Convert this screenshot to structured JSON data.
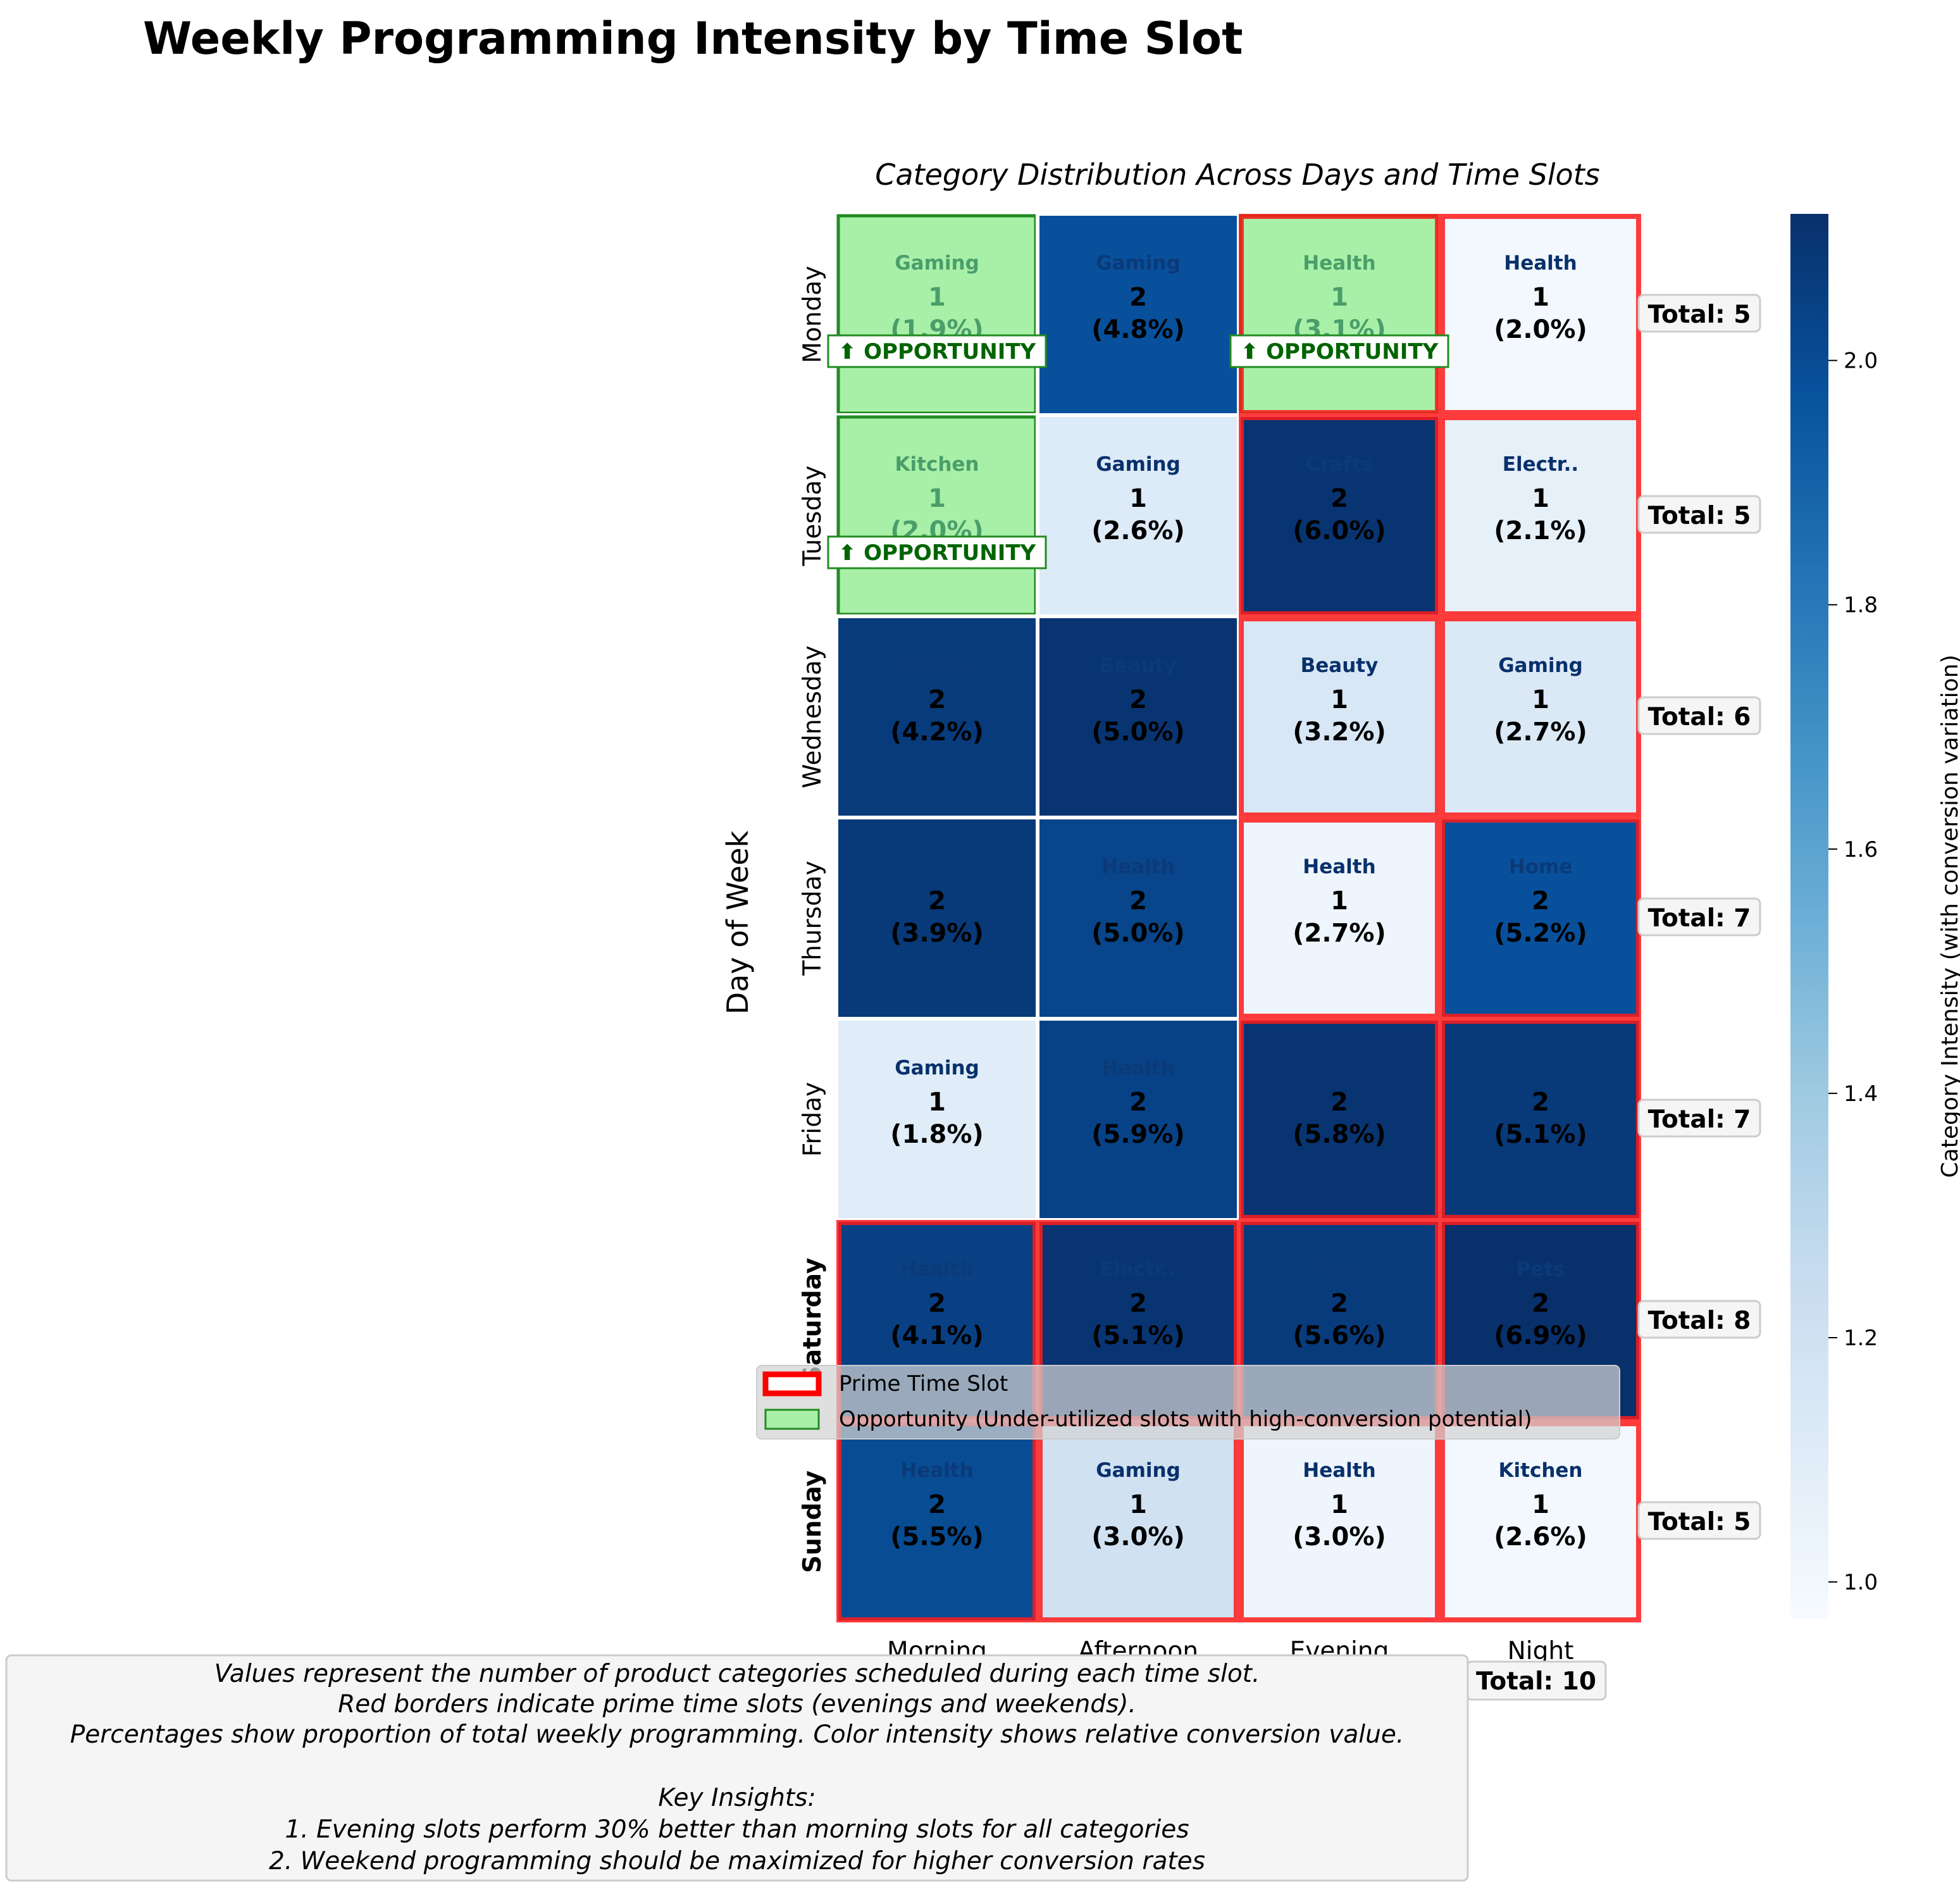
{
  "chart_data": {
    "type": "heatmap",
    "title": "Weekly Programming Intensity by Time Slot",
    "subtitle": "Category Distribution Across Days and Time Slots",
    "ylabel": "Day of Week",
    "xlabel": "",
    "columns": [
      "Morning",
      "Afternoon",
      "Evening",
      "Night"
    ],
    "rows": [
      "Monday",
      "Tuesday",
      "Wednesday",
      "Thursday",
      "Friday",
      "Saturday",
      "Sunday"
    ],
    "weekend_rows": [
      "Saturday",
      "Sunday"
    ],
    "cells": [
      [
        {
          "category": "Gaming",
          "value": 1,
          "pct": "(1.9%)",
          "intensity": 1.0,
          "opportunity": true,
          "prime": false
        },
        {
          "category": "Gaming",
          "value": 2,
          "pct": "(4.8%)",
          "intensity": 1.98,
          "opportunity": false,
          "prime": false
        },
        {
          "category": "Health",
          "value": 1,
          "pct": "(3.1%)",
          "intensity": 1.0,
          "opportunity": true,
          "prime": true
        },
        {
          "category": "Health",
          "value": 1,
          "pct": "(2.0%)",
          "intensity": 1.0,
          "opportunity": false,
          "prime": true
        }
      ],
      [
        {
          "category": "Kitchen",
          "value": 1,
          "pct": "(2.0%)",
          "intensity": 1.0,
          "opportunity": true,
          "prime": false
        },
        {
          "category": "Gaming",
          "value": 1,
          "pct": "(2.6%)",
          "intensity": 1.12,
          "opportunity": false,
          "prime": false
        },
        {
          "category": "Crafts",
          "value": 2,
          "pct": "(6.0%)",
          "intensity": 2.1,
          "opportunity": false,
          "prime": true
        },
        {
          "category": "Electr..",
          "value": 1,
          "pct": "(2.1%)",
          "intensity": 1.07,
          "opportunity": false,
          "prime": true
        }
      ],
      [
        {
          "category": "Electr..",
          "value": 2,
          "pct": "(4.2%)",
          "intensity": 2.07,
          "opportunity": false,
          "prime": false
        },
        {
          "category": "Beauty",
          "value": 2,
          "pct": "(5.0%)",
          "intensity": 2.1,
          "opportunity": false,
          "prime": false
        },
        {
          "category": "Beauty",
          "value": 1,
          "pct": "(3.2%)",
          "intensity": 1.15,
          "opportunity": false,
          "prime": true
        },
        {
          "category": "Gaming",
          "value": 1,
          "pct": "(2.7%)",
          "intensity": 1.13,
          "opportunity": false,
          "prime": true
        }
      ],
      [
        {
          "category": "Electr..",
          "value": 2,
          "pct": "(3.9%)",
          "intensity": 2.08,
          "opportunity": false,
          "prime": false
        },
        {
          "category": "Health",
          "value": 2,
          "pct": "(5.0%)",
          "intensity": 2.03,
          "opportunity": false,
          "prime": false
        },
        {
          "category": "Health",
          "value": 1,
          "pct": "(2.7%)",
          "intensity": 1.02,
          "opportunity": false,
          "prime": true
        },
        {
          "category": "Home",
          "value": 2,
          "pct": "(5.2%)",
          "intensity": 1.98,
          "opportunity": false,
          "prime": true
        }
      ],
      [
        {
          "category": "Gaming",
          "value": 1,
          "pct": "(1.8%)",
          "intensity": 1.1,
          "opportunity": false,
          "prime": false
        },
        {
          "category": "Health",
          "value": 2,
          "pct": "(5.9%)",
          "intensity": 2.04,
          "opportunity": false,
          "prime": false
        },
        {
          "category": "",
          "value": 2,
          "pct": "(5.8%)",
          "intensity": 2.1,
          "opportunity": false,
          "prime": true
        },
        {
          "category": "Crafts",
          "value": 2,
          "pct": "(5.1%)",
          "intensity": 2.08,
          "opportunity": false,
          "prime": true
        }
      ],
      [
        {
          "category": "Health",
          "value": 2,
          "pct": "(4.1%)",
          "intensity": 2.05,
          "opportunity": false,
          "prime": true
        },
        {
          "category": "Electr..",
          "value": 2,
          "pct": "(5.1%)",
          "intensity": 2.1,
          "opportunity": false,
          "prime": true
        },
        {
          "category": "Pets",
          "value": 2,
          "pct": "(5.6%)",
          "intensity": 2.07,
          "opportunity": false,
          "prime": true
        },
        {
          "category": "Pets",
          "value": 2,
          "pct": "(6.9%)",
          "intensity": 2.12,
          "opportunity": false,
          "prime": true
        }
      ],
      [
        {
          "category": "Health",
          "value": 2,
          "pct": "(5.5%)",
          "intensity": 2.0,
          "opportunity": false,
          "prime": true
        },
        {
          "category": "Gaming",
          "value": 1,
          "pct": "(3.0%)",
          "intensity": 1.2,
          "opportunity": false,
          "prime": true
        },
        {
          "category": "Health",
          "value": 1,
          "pct": "(3.0%)",
          "intensity": 1.02,
          "opportunity": false,
          "prime": true
        },
        {
          "category": "Kitchen",
          "value": 1,
          "pct": "(2.6%)",
          "intensity": 1.0,
          "opportunity": false,
          "prime": true
        }
      ]
    ],
    "row_totals": [
      "Total: 5",
      "Total: 5",
      "Total: 6",
      "Total: 7",
      "Total: 7",
      "Total: 8",
      "Total: 5"
    ],
    "column_total_label": "Total: 10",
    "opportunity_badge": "⬆ OPPORTUNITY",
    "colorbar": {
      "label": "Category Intensity (with conversion variation)",
      "min": 0.97,
      "max": 2.12,
      "ticks": [
        "1.0",
        "1.2",
        "1.4",
        "1.6",
        "1.8",
        "2.0"
      ],
      "colormap": "Blues"
    },
    "legend": {
      "placement": "lower-center",
      "items": [
        {
          "label": "Prime Time Slot",
          "color": "#ff0000"
        },
        {
          "label": "Opportunity (Under-utilized slots with high-conversion potential)",
          "color": "#90ee90"
        }
      ]
    },
    "colors": {
      "prime_border": "#ff1a1a",
      "opportunity_fill": "#a8f0a8",
      "opportunity_border": "#228b22",
      "opportunity_text": "#006400",
      "weekend_label": "#00008b"
    }
  },
  "notes": [
    "Values represent the number of product categories scheduled during each time slot.",
    "Red borders indicate prime time slots (evenings and weekends).",
    "Percentages show proportion of total weekly programming. Color intensity shows relative conversion value.",
    "",
    "Key Insights:",
    "1. Evening slots perform 30% better than morning slots for all categories",
    "2. Weekend programming should be maximized for higher conversion rates"
  ]
}
